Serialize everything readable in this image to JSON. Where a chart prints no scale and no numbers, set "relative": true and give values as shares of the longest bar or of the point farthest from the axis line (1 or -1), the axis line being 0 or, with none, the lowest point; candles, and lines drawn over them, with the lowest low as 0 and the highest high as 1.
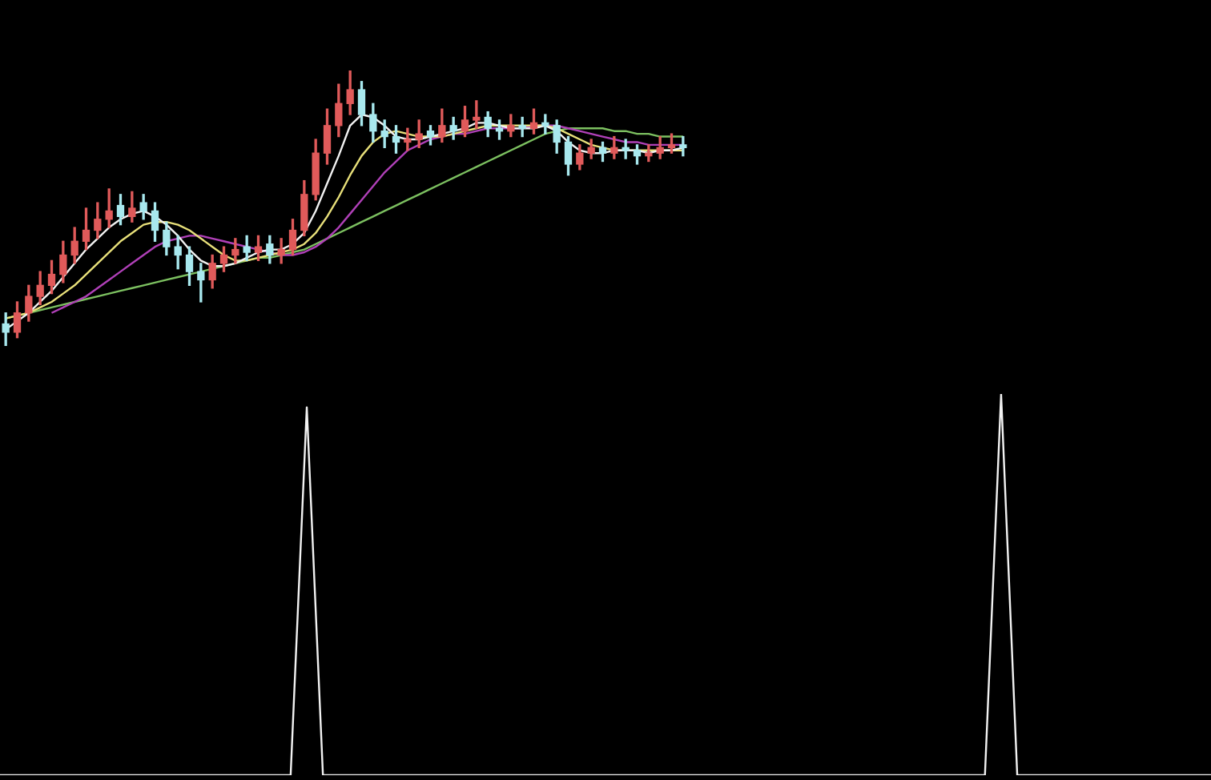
{
  "chart_data": [
    {
      "type": "candlestick",
      "relative": true,
      "categories": [
        null,
        null,
        null,
        null,
        null,
        null,
        null,
        null,
        null,
        null,
        null,
        null,
        null,
        null,
        null,
        null,
        null,
        null,
        null,
        null,
        null,
        null,
        null,
        null,
        null,
        null,
        null,
        null,
        null,
        null,
        null,
        null,
        null,
        null,
        null,
        null,
        null,
        null,
        null,
        null,
        null,
        null,
        null,
        null,
        null,
        null,
        null,
        null,
        null,
        null,
        null,
        null,
        null,
        null,
        null,
        null,
        null,
        null,
        null,
        null
      ],
      "ohlc": [
        [
          0.08,
          0.12,
          0.0,
          0.05
        ],
        [
          0.05,
          0.16,
          0.03,
          0.12
        ],
        [
          0.12,
          0.22,
          0.09,
          0.18
        ],
        [
          0.18,
          0.27,
          0.15,
          0.22
        ],
        [
          0.22,
          0.31,
          0.19,
          0.26
        ],
        [
          0.26,
          0.38,
          0.23,
          0.33
        ],
        [
          0.33,
          0.43,
          0.3,
          0.38
        ],
        [
          0.38,
          0.5,
          0.35,
          0.42
        ],
        [
          0.42,
          0.52,
          0.39,
          0.46
        ],
        [
          0.46,
          0.57,
          0.43,
          0.49
        ],
        [
          0.51,
          0.55,
          0.44,
          0.47
        ],
        [
          0.47,
          0.56,
          0.45,
          0.5
        ],
        [
          0.52,
          0.55,
          0.46,
          0.49
        ],
        [
          0.49,
          0.52,
          0.38,
          0.42
        ],
        [
          0.42,
          0.45,
          0.33,
          0.36
        ],
        [
          0.36,
          0.4,
          0.28,
          0.33
        ],
        [
          0.33,
          0.36,
          0.22,
          0.27
        ],
        [
          0.27,
          0.3,
          0.16,
          0.24
        ],
        [
          0.24,
          0.33,
          0.21,
          0.3
        ],
        [
          0.3,
          0.36,
          0.27,
          0.33
        ],
        [
          0.33,
          0.39,
          0.3,
          0.35
        ],
        [
          0.36,
          0.4,
          0.31,
          0.34
        ],
        [
          0.34,
          0.4,
          0.31,
          0.36
        ],
        [
          0.37,
          0.4,
          0.3,
          0.33
        ],
        [
          0.33,
          0.39,
          0.3,
          0.35
        ],
        [
          0.35,
          0.46,
          0.33,
          0.42
        ],
        [
          0.42,
          0.6,
          0.4,
          0.55
        ],
        [
          0.55,
          0.75,
          0.53,
          0.7
        ],
        [
          0.7,
          0.86,
          0.66,
          0.8
        ],
        [
          0.8,
          0.95,
          0.76,
          0.88
        ],
        [
          0.88,
          1.0,
          0.84,
          0.93
        ],
        [
          0.93,
          0.96,
          0.8,
          0.84
        ],
        [
          0.84,
          0.88,
          0.74,
          0.78
        ],
        [
          0.78,
          0.82,
          0.72,
          0.76
        ],
        [
          0.76,
          0.8,
          0.7,
          0.74
        ],
        [
          0.74,
          0.79,
          0.71,
          0.75
        ],
        [
          0.75,
          0.82,
          0.72,
          0.77
        ],
        [
          0.78,
          0.8,
          0.73,
          0.76
        ],
        [
          0.76,
          0.86,
          0.74,
          0.8
        ],
        [
          0.8,
          0.83,
          0.75,
          0.78
        ],
        [
          0.78,
          0.87,
          0.76,
          0.82
        ],
        [
          0.82,
          0.89,
          0.79,
          0.83
        ],
        [
          0.83,
          0.85,
          0.76,
          0.79
        ],
        [
          0.79,
          0.82,
          0.75,
          0.78
        ],
        [
          0.78,
          0.84,
          0.76,
          0.8
        ],
        [
          0.8,
          0.83,
          0.76,
          0.79
        ],
        [
          0.79,
          0.86,
          0.77,
          0.81
        ],
        [
          0.81,
          0.84,
          0.77,
          0.8
        ],
        [
          0.8,
          0.82,
          0.7,
          0.74
        ],
        [
          0.74,
          0.76,
          0.62,
          0.66
        ],
        [
          0.66,
          0.73,
          0.64,
          0.7
        ],
        [
          0.7,
          0.75,
          0.68,
          0.72
        ],
        [
          0.72,
          0.74,
          0.67,
          0.7
        ],
        [
          0.7,
          0.76,
          0.68,
          0.72
        ],
        [
          0.72,
          0.75,
          0.68,
          0.71
        ],
        [
          0.71,
          0.73,
          0.66,
          0.69
        ],
        [
          0.69,
          0.73,
          0.67,
          0.7
        ],
        [
          0.7,
          0.76,
          0.68,
          0.72
        ],
        [
          0.72,
          0.77,
          0.7,
          0.73
        ],
        [
          0.73,
          0.76,
          0.69,
          0.72
        ]
      ],
      "colors": [
        "#a8e8ee",
        "#e05a5a",
        "#e05a5a",
        "#e05a5a",
        "#e05a5a",
        "#e05a5a",
        "#e05a5a",
        "#e05a5a",
        "#e05a5a",
        "#e05a5a",
        "#a8e8ee",
        "#e05a5a",
        "#a8e8ee",
        "#a8e8ee",
        "#a8e8ee",
        "#a8e8ee",
        "#a8e8ee",
        "#a8e8ee",
        "#e05a5a",
        "#e05a5a",
        "#e05a5a",
        "#a8e8ee",
        "#e05a5a",
        "#a8e8ee",
        "#e05a5a",
        "#e05a5a",
        "#e05a5a",
        "#e05a5a",
        "#e05a5a",
        "#e05a5a",
        "#e05a5a",
        "#a8e8ee",
        "#a8e8ee",
        "#a8e8ee",
        "#a8e8ee",
        "#e05a5a",
        "#e05a5a",
        "#a8e8ee",
        "#e05a5a",
        "#a8e8ee",
        "#e05a5a",
        "#e05a5a",
        "#a8e8ee",
        "#a8e8ee",
        "#e05a5a",
        "#a8e8ee",
        "#e05a5a",
        "#a8e8ee",
        "#a8e8ee",
        "#a8e8ee",
        "#e05a5a",
        "#e05a5a",
        "#a8e8ee",
        "#e05a5a",
        "#a8e8ee",
        "#a8e8ee",
        "#e05a5a",
        "#e05a5a",
        "#e05a5a",
        "#a8e8ee"
      ],
      "series": [
        {
          "type": "line",
          "color": "#f2f2f2",
          "values": [
            0.06,
            0.09,
            0.12,
            0.16,
            0.2,
            0.25,
            0.3,
            0.35,
            0.39,
            0.43,
            0.46,
            0.48,
            0.49,
            0.47,
            0.44,
            0.4,
            0.35,
            0.31,
            0.29,
            0.29,
            0.3,
            0.32,
            0.34,
            0.35,
            0.35,
            0.37,
            0.41,
            0.49,
            0.59,
            0.69,
            0.8,
            0.84,
            0.83,
            0.8,
            0.76,
            0.75,
            0.75,
            0.76,
            0.77,
            0.78,
            0.79,
            0.81,
            0.81,
            0.8,
            0.79,
            0.79,
            0.79,
            0.8,
            0.78,
            0.74,
            0.71,
            0.7,
            0.7,
            0.71,
            0.71,
            0.71,
            0.7,
            0.71,
            0.71,
            0.72
          ]
        },
        {
          "type": "line",
          "color": "#e8e07a",
          "values": [
            0.1,
            0.11,
            0.12,
            0.14,
            0.16,
            0.19,
            0.22,
            0.26,
            0.3,
            0.34,
            0.38,
            0.41,
            0.44,
            0.45,
            0.45,
            0.44,
            0.42,
            0.39,
            0.36,
            0.33,
            0.31,
            0.31,
            0.32,
            0.33,
            0.34,
            0.35,
            0.37,
            0.41,
            0.47,
            0.54,
            0.62,
            0.69,
            0.74,
            0.77,
            0.78,
            0.77,
            0.76,
            0.76,
            0.76,
            0.77,
            0.78,
            0.79,
            0.8,
            0.8,
            0.8,
            0.8,
            0.8,
            0.8,
            0.79,
            0.77,
            0.75,
            0.73,
            0.72,
            0.71,
            0.71,
            0.71,
            0.71,
            0.71,
            0.71,
            0.71
          ]
        },
        {
          "type": "line",
          "color": "#b040b8",
          "values": [
            null,
            null,
            null,
            null,
            0.12,
            0.14,
            0.16,
            0.18,
            0.21,
            0.24,
            0.27,
            0.3,
            0.33,
            0.36,
            0.38,
            0.39,
            0.4,
            0.4,
            0.39,
            0.38,
            0.37,
            0.36,
            0.35,
            0.34,
            0.33,
            0.33,
            0.34,
            0.36,
            0.39,
            0.43,
            0.48,
            0.53,
            0.58,
            0.63,
            0.67,
            0.71,
            0.73,
            0.75,
            0.76,
            0.77,
            0.77,
            0.78,
            0.79,
            0.79,
            0.79,
            0.79,
            0.8,
            0.8,
            0.8,
            0.79,
            0.78,
            0.77,
            0.76,
            0.75,
            0.74,
            0.74,
            0.73,
            0.73,
            0.73,
            0.73
          ]
        },
        {
          "type": "line",
          "color": "#7cc060",
          "values": [
            0.1,
            0.11,
            0.12,
            0.13,
            0.14,
            0.15,
            0.16,
            0.17,
            0.18,
            0.19,
            0.2,
            0.21,
            0.22,
            0.23,
            0.24,
            0.25,
            0.26,
            0.27,
            0.28,
            0.29,
            0.3,
            0.31,
            0.32,
            0.32,
            0.33,
            0.34,
            0.35,
            0.37,
            0.39,
            0.41,
            0.43,
            0.45,
            0.47,
            0.49,
            0.51,
            0.53,
            0.55,
            0.57,
            0.59,
            0.61,
            0.63,
            0.65,
            0.67,
            0.69,
            0.71,
            0.73,
            0.75,
            0.77,
            0.78,
            0.79,
            0.79,
            0.79,
            0.79,
            0.78,
            0.78,
            0.77,
            0.77,
            0.76,
            0.76,
            0.76
          ]
        }
      ]
    },
    {
      "type": "line",
      "relative": true,
      "color": "#f2f2f2",
      "categories": [
        null,
        null,
        null,
        null,
        null,
        null,
        null,
        null,
        null,
        null,
        null,
        null,
        null,
        null,
        null,
        null,
        null,
        null,
        null,
        null,
        null,
        null,
        null,
        null,
        null,
        null,
        null,
        null,
        null,
        null,
        null,
        null,
        null,
        null,
        null,
        null,
        null,
        null,
        null,
        null,
        null,
        null,
        null,
        null,
        null,
        null,
        null,
        null,
        null,
        null,
        null,
        null,
        null,
        null,
        null,
        null,
        null,
        null,
        null,
        null,
        null,
        null,
        null,
        null,
        null,
        null,
        null,
        null,
        null,
        null,
        null,
        null,
        null,
        null,
        null,
        null
      ],
      "values": [
        0,
        0,
        0,
        0,
        0,
        0,
        0,
        0,
        0,
        0,
        0,
        0,
        0,
        0,
        0,
        0,
        0,
        0,
        0,
        0.965,
        0,
        0,
        0,
        0,
        0,
        0,
        0,
        0,
        0,
        0,
        0,
        0,
        0,
        0,
        0,
        0,
        0,
        0,
        0,
        0,
        0,
        0,
        0,
        0,
        0,
        0,
        0,
        0,
        0,
        0,
        0,
        0,
        0,
        0,
        0,
        0,
        0,
        0,
        0,
        0,
        0,
        0,
        1,
        0,
        0,
        0,
        0,
        0,
        0,
        0,
        0,
        0,
        0,
        0,
        0,
        0
      ]
    }
  ]
}
